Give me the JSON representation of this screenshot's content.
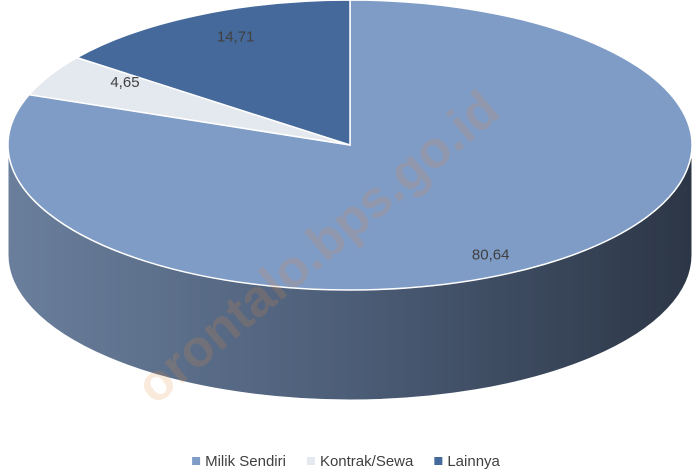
{
  "chart_data": {
    "type": "pie",
    "categories": [
      "Milik Sendiri",
      "Kontrak/Sewa",
      "Lainnya"
    ],
    "values": [
      80.64,
      4.65,
      14.71
    ],
    "value_labels": [
      "80,64",
      "4,65",
      "14,71"
    ],
    "colors": [
      "#7f9cc6",
      "#e4e8ef",
      "#44699a"
    ],
    "legend": "bottom",
    "watermark": "orontalo.bps.go.id"
  }
}
